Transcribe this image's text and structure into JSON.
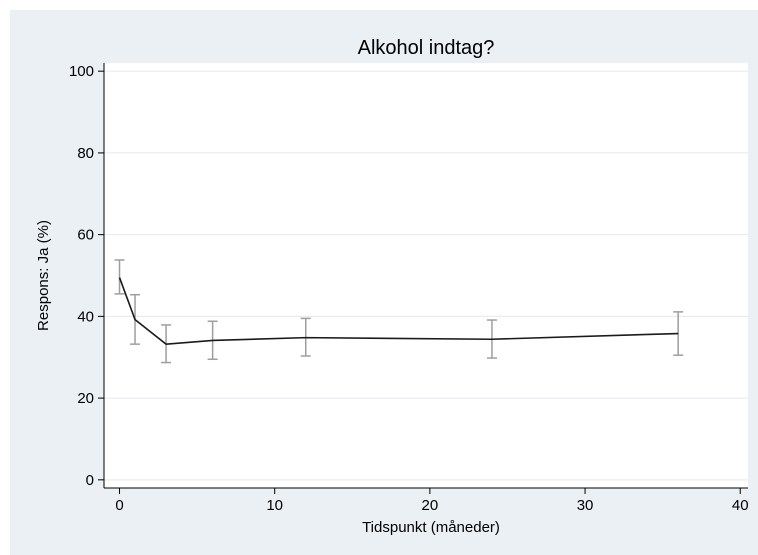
{
  "chart_data": {
    "type": "line",
    "title": "Alkohol indtag?",
    "xlabel": "Tidspunkt (måneder)",
    "ylabel": "Respons: Ja (%)",
    "xlim": [
      -1,
      40.5
    ],
    "ylim": [
      -2,
      102
    ],
    "xticks": [
      0,
      10,
      20,
      30,
      40
    ],
    "yticks": [
      0,
      20,
      40,
      60,
      80,
      100
    ],
    "grid": true,
    "series": [
      {
        "x": [
          0,
          1,
          3,
          6,
          12,
          24,
          36
        ],
        "y": [
          49.5,
          39.2,
          33.2,
          34.1,
          34.8,
          34.4,
          35.8
        ],
        "ci_low": [
          45.5,
          33.2,
          28.7,
          29.5,
          30.3,
          29.8,
          30.5
        ],
        "ci_high": [
          53.8,
          45.3,
          37.9,
          38.8,
          39.5,
          39.1,
          41.1
        ]
      }
    ],
    "colors": {
      "figure_bg": "#eaf0f4",
      "plot_bg": "#ffffff",
      "grid": "#e4e9ed",
      "line": "#1a1a1a",
      "errorbar": "#9e9e9e"
    }
  }
}
